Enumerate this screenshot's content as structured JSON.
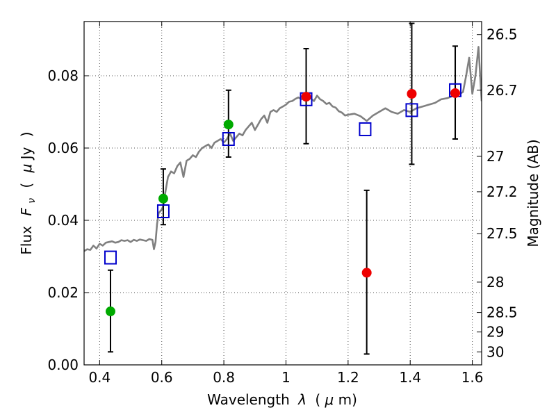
{
  "chart_data": {
    "type": "scatter",
    "xlabel": "Wavelength λ (μm)",
    "ylabel": "Flux F_ν ( μJy )",
    "ylabel_parts": [
      "Flux",
      "F",
      "ν",
      "(",
      "μ",
      "Jy",
      ")"
    ],
    "xlabel_parts": [
      "Wavelength",
      "λ",
      "(",
      "μ",
      "m)"
    ],
    "y2label": "Magnitude (AB)",
    "xlim": [
      0.35,
      1.63
    ],
    "ylim": [
      0.0,
      0.095
    ],
    "grid": true,
    "x_ticks": [
      0.4,
      0.6,
      0.8,
      1.0,
      1.2,
      1.4,
      1.6
    ],
    "x_tick_labels": [
      "0.4",
      "0.6",
      "0.8",
      "1",
      "1.2",
      "1.4",
      "1.6"
    ],
    "y_ticks": [
      0.0,
      0.02,
      0.04,
      0.06,
      0.08
    ],
    "y_tick_labels": [
      "0.00",
      "0.02",
      "0.04",
      "0.06",
      "0.08"
    ],
    "y2_ticks": [
      {
        "label": "26.5",
        "flux": 0.0914
      },
      {
        "label": "26.7",
        "flux": 0.076
      },
      {
        "label": "27",
        "flux": 0.0577
      },
      {
        "label": "27.2",
        "flux": 0.0479
      },
      {
        "label": "27.5",
        "flux": 0.0363
      },
      {
        "label": "28",
        "flux": 0.0229
      },
      {
        "label": "28.5",
        "flux": 0.0145
      },
      {
        "label": "29",
        "flux": 0.0091
      },
      {
        "label": "30",
        "flux": 0.0036
      }
    ],
    "series": [
      {
        "kind": "spectrum",
        "color": "#808080",
        "x": [
          0.35,
          0.36,
          0.37,
          0.38,
          0.39,
          0.4,
          0.41,
          0.42,
          0.43,
          0.44,
          0.45,
          0.46,
          0.47,
          0.48,
          0.49,
          0.5,
          0.51,
          0.52,
          0.53,
          0.54,
          0.55,
          0.56,
          0.57,
          0.575,
          0.58,
          0.585,
          0.59,
          0.6,
          0.605,
          0.61,
          0.62,
          0.63,
          0.64,
          0.65,
          0.66,
          0.67,
          0.68,
          0.69,
          0.7,
          0.71,
          0.72,
          0.73,
          0.74,
          0.75,
          0.76,
          0.77,
          0.78,
          0.79,
          0.8,
          0.81,
          0.82,
          0.83,
          0.84,
          0.85,
          0.86,
          0.87,
          0.88,
          0.89,
          0.9,
          0.91,
          0.92,
          0.93,
          0.94,
          0.95,
          0.96,
          0.97,
          0.98,
          0.99,
          1.0,
          1.01,
          1.02,
          1.03,
          1.04,
          1.05,
          1.06,
          1.07,
          1.08,
          1.09,
          1.1,
          1.11,
          1.12,
          1.13,
          1.14,
          1.15,
          1.16,
          1.17,
          1.18,
          1.19,
          1.2,
          1.22,
          1.24,
          1.26,
          1.28,
          1.3,
          1.32,
          1.34,
          1.36,
          1.38,
          1.4,
          1.42,
          1.44,
          1.46,
          1.48,
          1.5,
          1.52,
          1.54,
          1.56,
          1.57,
          1.58,
          1.59,
          1.6,
          1.61,
          1.62,
          1.63
        ],
        "y": [
          0.0315,
          0.032,
          0.0318,
          0.033,
          0.0322,
          0.0335,
          0.033,
          0.0338,
          0.034,
          0.0342,
          0.0338,
          0.034,
          0.0345,
          0.0343,
          0.0345,
          0.034,
          0.0346,
          0.0343,
          0.0347,
          0.0345,
          0.0343,
          0.0348,
          0.0346,
          0.032,
          0.034,
          0.039,
          0.042,
          0.043,
          0.044,
          0.047,
          0.052,
          0.0535,
          0.053,
          0.055,
          0.056,
          0.052,
          0.0565,
          0.057,
          0.058,
          0.0575,
          0.059,
          0.06,
          0.0605,
          0.061,
          0.06,
          0.0615,
          0.062,
          0.0625,
          0.0615,
          0.0625,
          0.064,
          0.062,
          0.063,
          0.064,
          0.0635,
          0.065,
          0.066,
          0.067,
          0.065,
          0.0665,
          0.068,
          0.069,
          0.067,
          0.07,
          0.0705,
          0.07,
          0.071,
          0.0715,
          0.072,
          0.0728,
          0.073,
          0.0736,
          0.074,
          0.0735,
          0.0738,
          0.074,
          0.0737,
          0.073,
          0.0745,
          0.0735,
          0.073,
          0.0722,
          0.0725,
          0.0715,
          0.0712,
          0.0702,
          0.0698,
          0.069,
          0.0692,
          0.0695,
          0.0688,
          0.0675,
          0.069,
          0.07,
          0.071,
          0.07,
          0.0695,
          0.0705,
          0.07,
          0.071,
          0.0715,
          0.072,
          0.0725,
          0.0735,
          0.0738,
          0.0745,
          0.075,
          0.0755,
          0.08,
          0.085,
          0.075,
          0.08,
          0.088,
          0.073
        ]
      },
      {
        "kind": "squares",
        "color": "#0000cc",
        "x": [
          0.435,
          0.605,
          0.815,
          1.065,
          1.255,
          1.405,
          1.545
        ],
        "y": [
          0.0297,
          0.0425,
          0.0625,
          0.0735,
          0.0652,
          0.0705,
          0.076
        ]
      },
      {
        "kind": "points",
        "color": "#00aa00",
        "x": [
          0.435,
          0.605,
          0.815
        ],
        "y": [
          0.0148,
          0.046,
          0.0665
        ],
        "yerr_low": [
          0.0036,
          0.0388,
          0.0575
        ],
        "yerr_high": [
          0.0262,
          0.0542,
          0.076
        ]
      },
      {
        "kind": "points",
        "color": "#ee0000",
        "x": [
          1.065,
          1.26,
          1.405,
          1.545
        ],
        "y": [
          0.0742,
          0.0255,
          0.075,
          0.0752
        ],
        "yerr_low": [
          0.0612,
          0.003,
          0.0555,
          0.0625
        ],
        "yerr_high": [
          0.0875,
          0.0483,
          0.0945,
          0.0882
        ]
      }
    ]
  }
}
